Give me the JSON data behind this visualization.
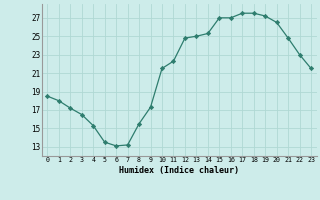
{
  "x": [
    0,
    1,
    2,
    3,
    4,
    5,
    6,
    7,
    8,
    9,
    10,
    11,
    12,
    13,
    14,
    15,
    16,
    17,
    18,
    19,
    20,
    21,
    22,
    23
  ],
  "y": [
    18.5,
    18.0,
    17.2,
    16.5,
    15.3,
    13.5,
    13.1,
    13.2,
    15.5,
    17.3,
    21.5,
    22.3,
    24.8,
    25.0,
    25.3,
    27.0,
    27.0,
    27.5,
    27.5,
    27.2,
    26.5,
    24.8,
    23.0,
    21.5
  ],
  "xlabel": "Humidex (Indice chaleur)",
  "line_color": "#2e7d6e",
  "marker_color": "#2e7d6e",
  "bg_color": "#cdecea",
  "grid_color": "#b0d8d4",
  "yticks": [
    13,
    15,
    17,
    19,
    21,
    23,
    25,
    27
  ],
  "xticks": [
    0,
    1,
    2,
    3,
    4,
    5,
    6,
    7,
    8,
    9,
    10,
    11,
    12,
    13,
    14,
    15,
    16,
    17,
    18,
    19,
    20,
    21,
    22,
    23
  ],
  "ylim": [
    12.0,
    28.5
  ],
  "xlim": [
    -0.5,
    23.5
  ]
}
